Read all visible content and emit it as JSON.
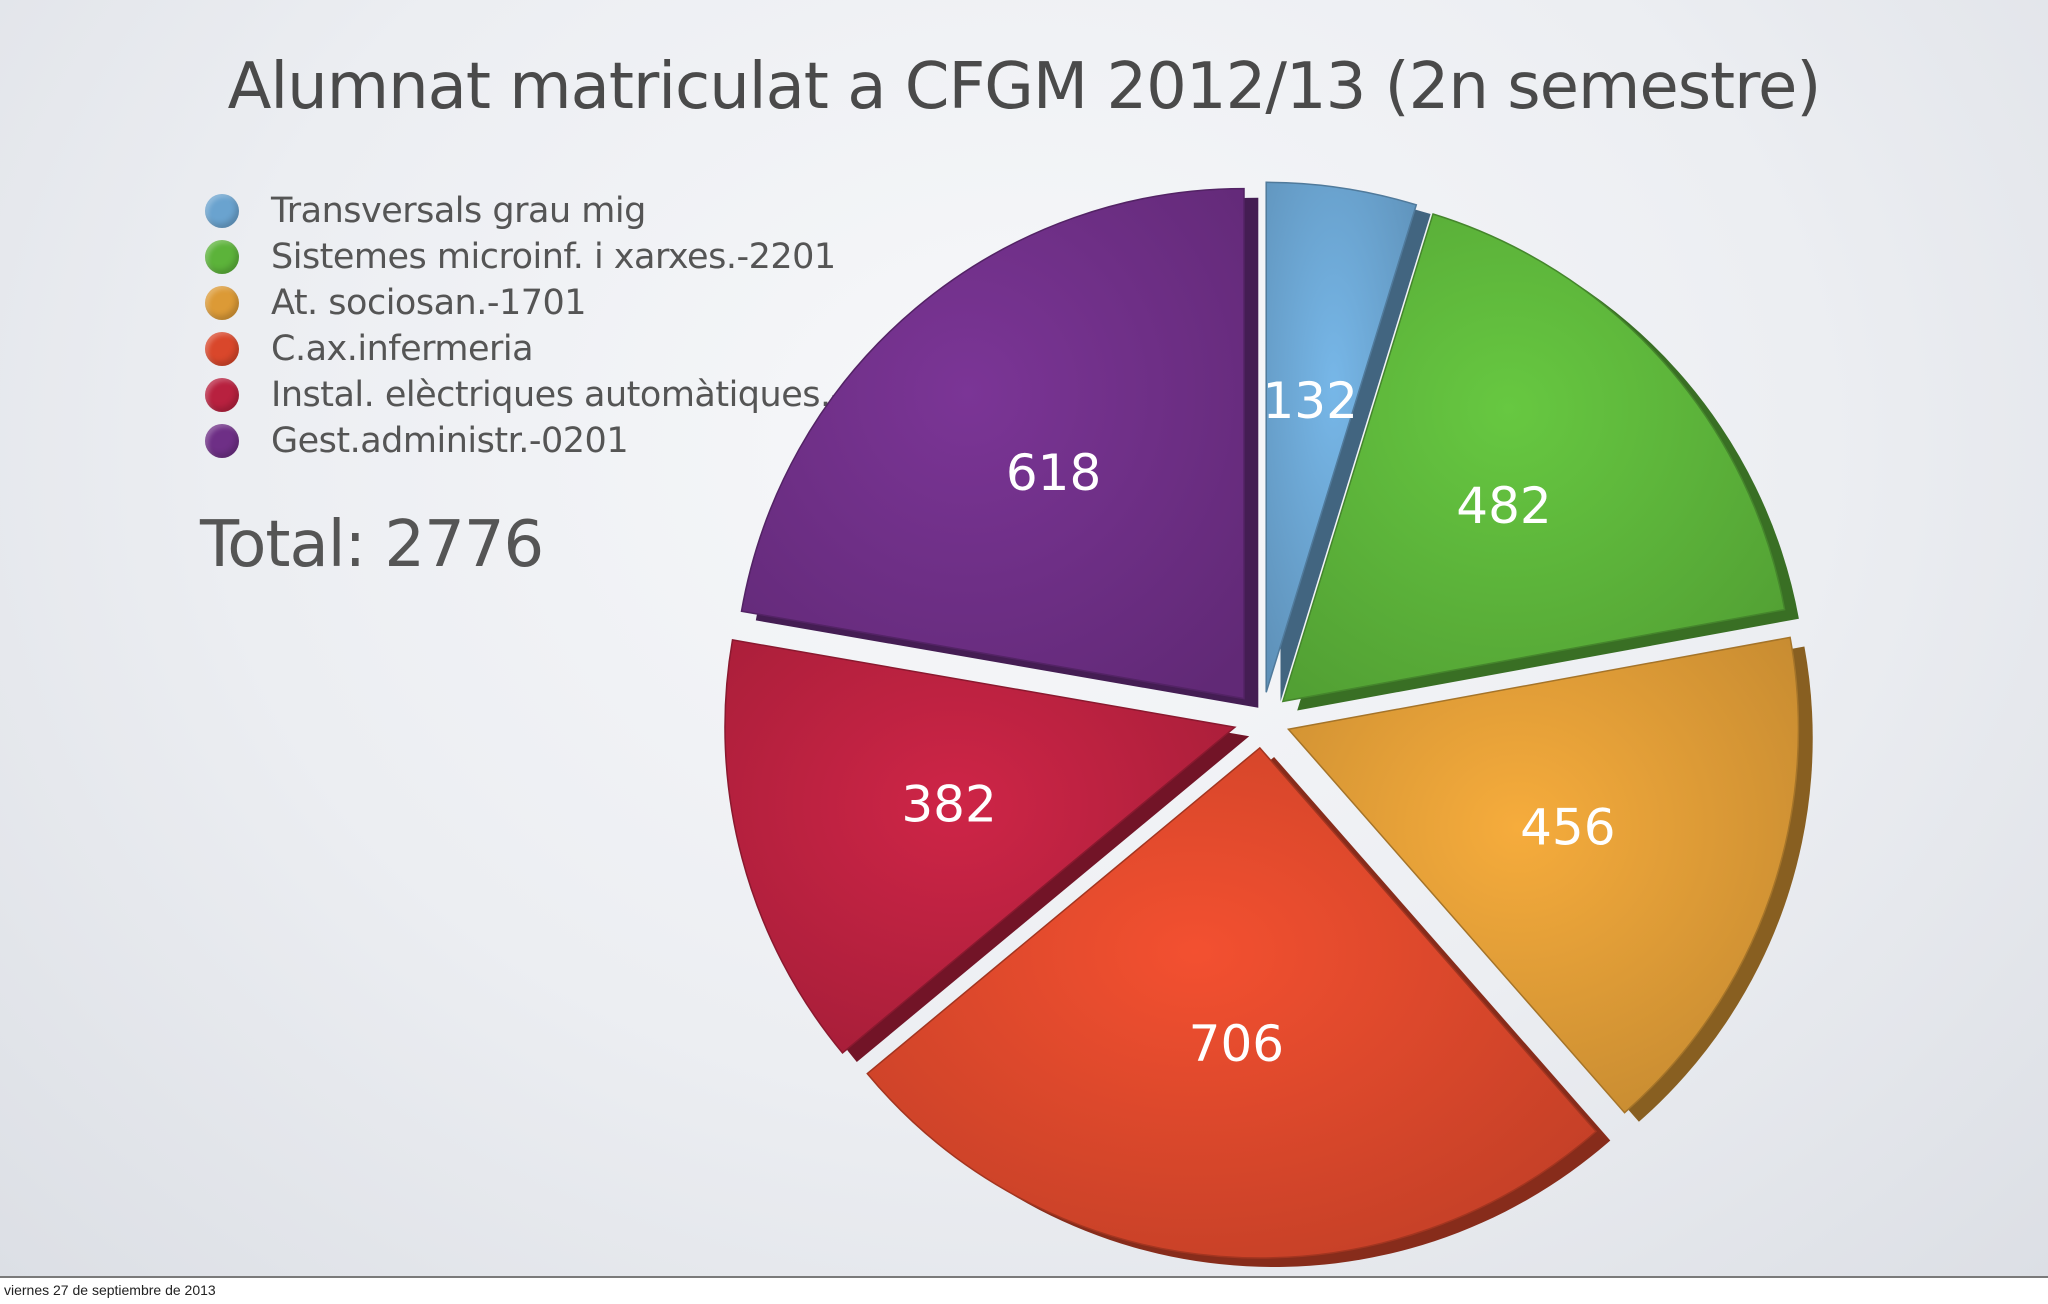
{
  "chart_data": {
    "type": "pie",
    "title": "Alumnat matriculat a CFGM 2012/13 (2n semestre)",
    "categories": [
      "Transversals grau mig",
      "Sistemes microinf. i xarxes.-2201",
      "At. sociosan.-1701",
      "C.ax.infermeria",
      "Instal. elèctriques automàtiques.-0801",
      "Gest.administr.-0201"
    ],
    "values": [
      132,
      482,
      456,
      706,
      382,
      618
    ],
    "colors": [
      "#6aa3cf",
      "#5cb33a",
      "#dc9a36",
      "#d9472b",
      "#b8213f",
      "#6e2f86"
    ],
    "total_label": "Total: 2776",
    "legend_position": "top-left",
    "data_labels": true
  },
  "footer": {
    "date": "viernes 27 de septiembre de 2013"
  }
}
